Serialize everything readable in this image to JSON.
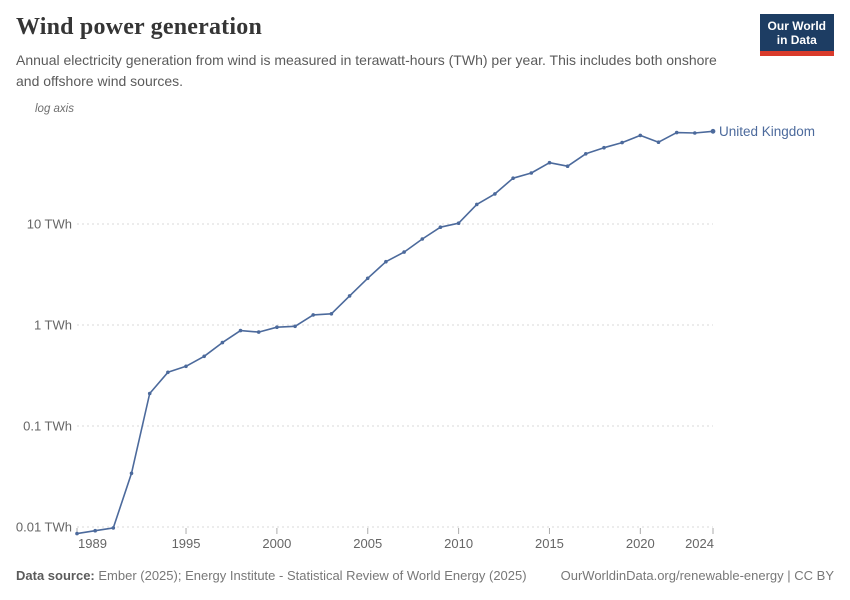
{
  "header": {
    "title": "Wind power generation",
    "subtitle": "Annual electricity generation from wind is measured in terawatt-hours (TWh) per year. This includes both onshore and offshore wind sources.",
    "logo": {
      "line1": "Our World",
      "line2": "in Data"
    }
  },
  "chart_data": {
    "type": "line",
    "scale_note": "log axis",
    "entity_label": "United Kingdom",
    "years": [
      1989,
      1990,
      1991,
      1992,
      1993,
      1994,
      1995,
      1996,
      1997,
      1998,
      1999,
      2000,
      2001,
      2002,
      2003,
      2004,
      2005,
      2006,
      2007,
      2008,
      2009,
      2010,
      2011,
      2012,
      2013,
      2014,
      2015,
      2016,
      2017,
      2018,
      2019,
      2020,
      2021,
      2022,
      2023,
      2024
    ],
    "values_twh": [
      0.0086,
      0.0092,
      0.0098,
      0.034,
      0.21,
      0.34,
      0.39,
      0.49,
      0.67,
      0.88,
      0.85,
      0.95,
      0.97,
      1.26,
      1.29,
      1.94,
      2.9,
      4.23,
      5.27,
      7.1,
      9.3,
      10.18,
      15.65,
      19.85,
      28.43,
      32.02,
      40.44,
      37.37,
      49.58,
      56.9,
      63.98,
      75.38,
      64.53,
      80.27,
      79.61,
      82.8
    ],
    "x_ticks": [
      1989,
      1995,
      2000,
      2005,
      2010,
      2015,
      2020,
      2024
    ],
    "y_ticks": [
      {
        "value": 0.01,
        "label": "0.01 TWh"
      },
      {
        "value": 0.1,
        "label": "0.1 TWh"
      },
      {
        "value": 1,
        "label": "1 TWh"
      },
      {
        "value": 10,
        "label": "10 TWh"
      }
    ],
    "ylim": [
      0.008,
      120
    ],
    "grid": true,
    "legend_position": "end-of-line",
    "colors": {
      "series": "#4c6a9c",
      "grid": "#dadada",
      "tick": "#ababab",
      "axis_text": "#666666",
      "entity_text": "#4c6a9c"
    }
  },
  "footer": {
    "source_label": "Data source:",
    "source_text": " Ember (2025); Energy Institute - Statistical Review of World Energy (2025)",
    "right_text": "OurWorldinData.org/renewable-energy | CC BY"
  }
}
